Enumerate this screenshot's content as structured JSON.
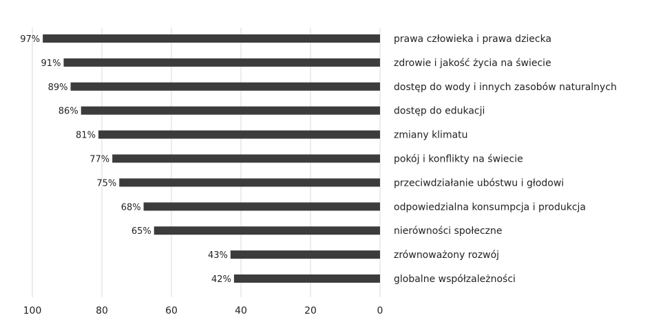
{
  "chart_data": {
    "type": "bar",
    "orientation": "horizontal",
    "x_reversed": true,
    "xlim": [
      0,
      100
    ],
    "x_ticks": [
      100,
      80,
      60,
      40,
      20,
      0
    ],
    "grid": true,
    "bar_color": "#3c3c3c",
    "grid_color": "#d9d9d9",
    "categories": [
      "prawa człowieka i prawa dziecka",
      "zdrowie i jakość życia na świecie",
      "dostęp do wody i innych zasobów naturalnych",
      "dostęp do edukacji",
      "zmiany klimatu",
      "pokój i konflikty na świecie",
      "przeciwdziałanie ubóstwu i głodowi",
      "odpowiedzialna konsumpcja i produkcja",
      "nierówności społeczne",
      "zrównoważony rozwój",
      "globalne współzależności"
    ],
    "values": [
      97,
      91,
      89,
      86,
      81,
      77,
      75,
      68,
      65,
      43,
      42
    ],
    "value_labels": [
      "97%",
      "91%",
      "89%",
      "86%",
      "81%",
      "77%",
      "75%",
      "68%",
      "65%",
      "43%",
      "42%"
    ]
  }
}
